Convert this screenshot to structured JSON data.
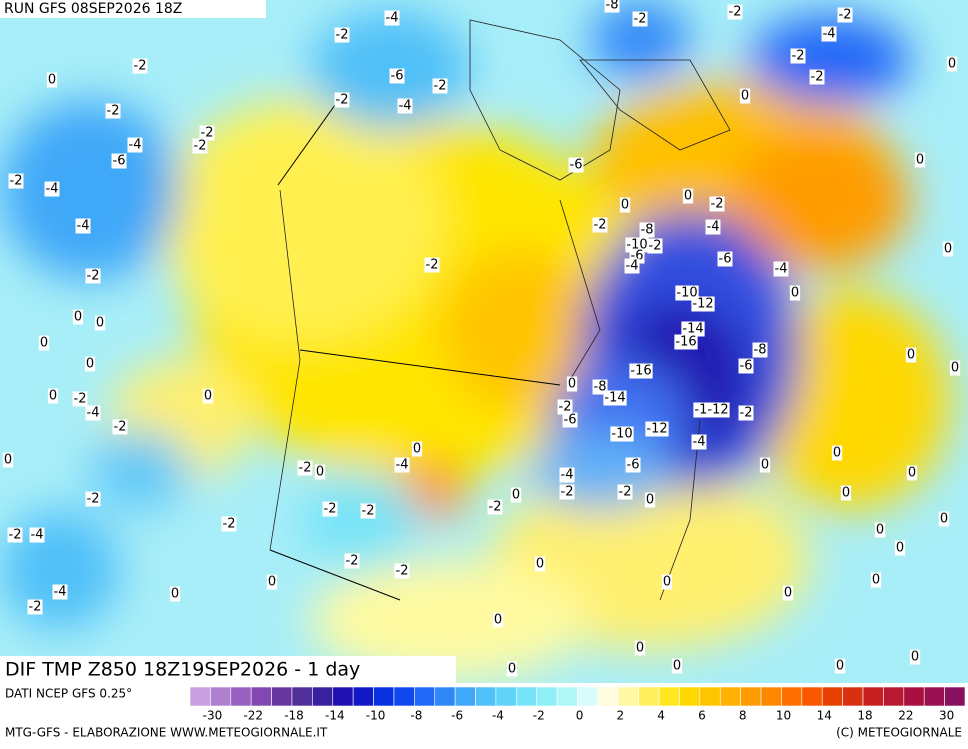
{
  "header": {
    "run": "RUN GFS 08SEP2026 18Z"
  },
  "map": {
    "title": "DIF TMP Z850 18Z19SEP2026 - 1 day",
    "contour_labels": [
      -4,
      -2,
      -2,
      0,
      -6,
      -2,
      -4,
      -2,
      -2,
      -4,
      -2,
      -2,
      -6,
      -2,
      -4,
      -4,
      -2,
      0,
      0,
      0,
      0,
      0,
      -2,
      -4,
      -2,
      0,
      0,
      -2,
      -2,
      -2,
      -4,
      -2,
      -4,
      0,
      -2,
      0,
      -4,
      0,
      -2,
      -2,
      -2,
      -2,
      0,
      -2,
      0,
      0,
      -2,
      -2,
      0,
      -8,
      -10,
      -2,
      -6,
      -4,
      0,
      -2,
      -4,
      -6,
      -4,
      0,
      -10,
      -12,
      -14,
      -16,
      -8,
      -6,
      -16,
      -8,
      -14,
      0,
      -2,
      -6,
      -10,
      -12,
      -2,
      -10,
      -12,
      -4,
      -6,
      -4,
      -2,
      -2,
      0,
      0,
      0,
      0,
      0,
      0,
      0,
      0,
      0,
      0,
      0,
      0,
      0,
      0,
      0,
      0,
      0,
      0,
      0,
      0,
      0,
      0,
      0,
      -6,
      -4,
      -2,
      -2,
      -2,
      -8,
      -2,
      -2
    ]
  },
  "legend": {
    "source": "DATI NCEP GFS 0.25°",
    "colors": [
      "#c8a0e0",
      "#b080d0",
      "#9860c0",
      "#8048b0",
      "#6838a0",
      "#503098",
      "#3820a0",
      "#2010b0",
      "#1018c8",
      "#0830e0",
      "#1048f0",
      "#2068f8",
      "#3088f8",
      "#40a8f8",
      "#50c0f8",
      "#60d4f8",
      "#78e4f8",
      "#90f0f8",
      "#b0f8f8",
      "#d8fcfc",
      "#fffce0",
      "#fff8a0",
      "#fff060",
      "#ffe820",
      "#ffd800",
      "#ffc400",
      "#ffb000",
      "#ff9c00",
      "#ff8800",
      "#ff7000",
      "#f85800",
      "#e84000",
      "#d83010",
      "#c82020",
      "#b81830",
      "#a81040",
      "#981050",
      "#881060"
    ],
    "ticks": [
      -30,
      -22,
      -18,
      -14,
      -10,
      -8,
      -6,
      -4,
      -2,
      0,
      2,
      4,
      6,
      8,
      10,
      14,
      18,
      22,
      30
    ]
  },
  "footer": {
    "left": "MTG-GFS - ELABORAZIONE WWW.METEOGIORNALE.IT",
    "right": "(C) METEOGIORNALE"
  }
}
